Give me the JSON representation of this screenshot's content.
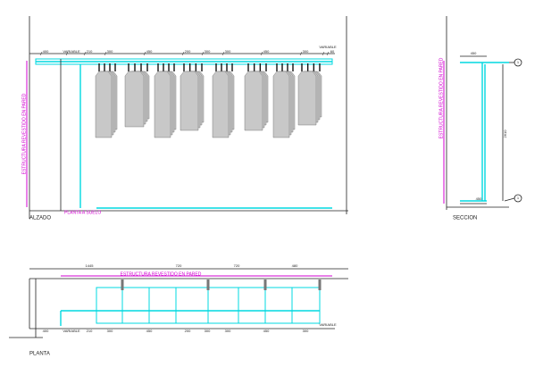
{
  "alzado": {
    "label": "ALZADO",
    "wall_label": "ESTRUCTURA REVESTIDO EN PARED",
    "floor_label": "PLANTA A SUELO",
    "dimensions": [
      "400",
      "VARIABLE",
      "210",
      "300",
      "450",
      "200",
      "300",
      "300",
      "450",
      "300",
      "VARIABLE",
      "60"
    ]
  },
  "seccion": {
    "label": "SECCION",
    "wall_label": "ESTRUCTURA REVESTIDO EN PARED",
    "top_dim": "450",
    "height_dim": "2610",
    "bottom_dim": "450",
    "callouts": [
      "1",
      "1"
    ]
  },
  "planta": {
    "label": "PLANTA",
    "wall_label": "ESTRUCTURA REVESTIDO EN PARED",
    "top_dims": [
      "1445",
      "720",
      "720",
      "480"
    ],
    "dimensions": [
      "400",
      "VARIABLE",
      "210",
      "300",
      "450",
      "200",
      "300",
      "300",
      "450",
      "300",
      "VARIABLE"
    ]
  }
}
